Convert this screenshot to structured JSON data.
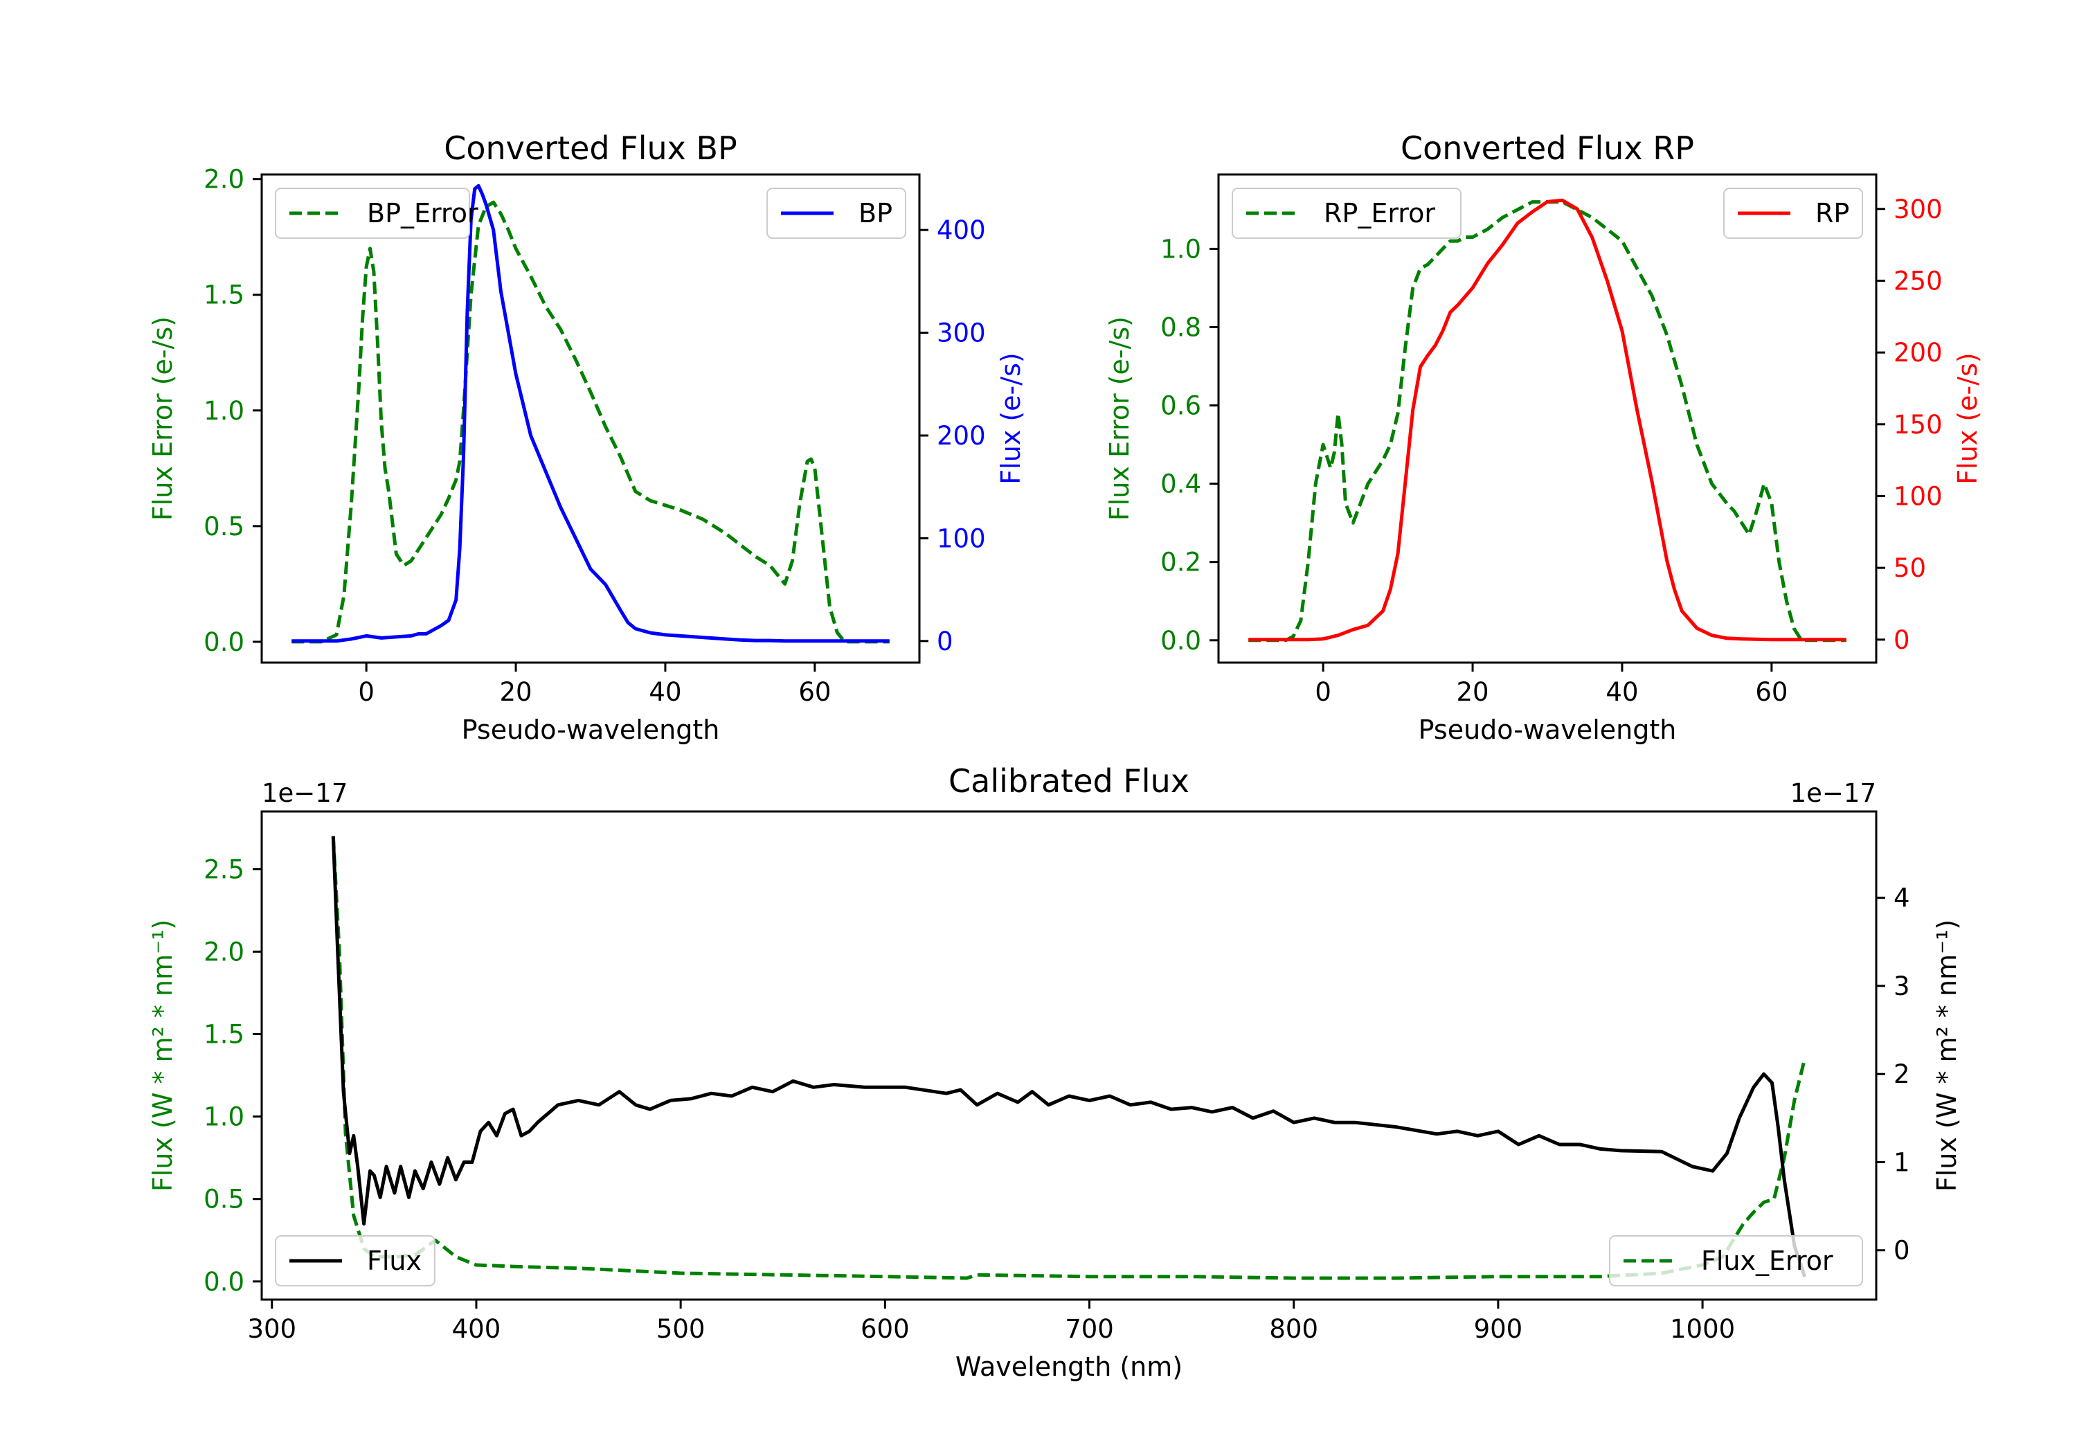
{
  "figure": {
    "background": "#ffffff"
  },
  "chart_data": [
    {
      "id": "bp",
      "type": "line",
      "title": "Converted Flux BP",
      "xlabel": "Pseudo-wavelength",
      "xlim": [
        -14,
        74
      ],
      "xticks": [
        0,
        20,
        40,
        60
      ],
      "ylabel_left": "Flux Error (e-/s)",
      "ylabel_right": "Flux (e-/s)",
      "ylim_left": [
        -0.09,
        2.02
      ],
      "ylim_right": [
        -21,
        454
      ],
      "yticks_left": [
        0.0,
        0.5,
        1.0,
        1.5,
        2.0
      ],
      "yticks_right": [
        0,
        100,
        200,
        300,
        400
      ],
      "left_axis_color": "#008000",
      "right_axis_color": "#0000ff",
      "legend_left": {
        "position": "upper left",
        "entries": [
          "BP_Error"
        ]
      },
      "legend_right": {
        "position": "upper right",
        "entries": [
          "BP"
        ]
      },
      "series": [
        {
          "name": "BP_Error",
          "axis": "left",
          "color": "#008000",
          "dash": "dashed",
          "x": [
            -10,
            -6,
            -4,
            -3,
            -2,
            -1,
            -0.5,
            0,
            0.5,
            1,
            1.5,
            2,
            2.5,
            3,
            4,
            5,
            6,
            7,
            8,
            9,
            10,
            11,
            12,
            12.5,
            13,
            14,
            15,
            16,
            17,
            18,
            19,
            20,
            22,
            24,
            26,
            28,
            30,
            32,
            34,
            36,
            38,
            40,
            42,
            45,
            48,
            50,
            52,
            54,
            55,
            56,
            57,
            58,
            59,
            59.5,
            60,
            61,
            62,
            63,
            64,
            65,
            70
          ],
          "values": [
            0,
            0,
            0.03,
            0.2,
            0.6,
            1.1,
            1.4,
            1.62,
            1.7,
            1.6,
            1.3,
            0.95,
            0.75,
            0.65,
            0.38,
            0.33,
            0.35,
            0.4,
            0.45,
            0.5,
            0.55,
            0.62,
            0.7,
            0.78,
            1.0,
            1.5,
            1.8,
            1.88,
            1.9,
            1.85,
            1.78,
            1.7,
            1.58,
            1.45,
            1.35,
            1.22,
            1.08,
            0.93,
            0.8,
            0.65,
            0.61,
            0.59,
            0.57,
            0.53,
            0.47,
            0.42,
            0.37,
            0.33,
            0.29,
            0.25,
            0.35,
            0.6,
            0.78,
            0.79,
            0.75,
            0.45,
            0.15,
            0.04,
            0.0,
            0,
            0
          ]
        },
        {
          "name": "BP",
          "axis": "right",
          "color": "#0000ff",
          "dash": "solid",
          "x": [
            -10,
            -4,
            -2,
            0,
            2,
            4,
            6,
            7,
            8,
            10,
            11,
            12,
            12.5,
            13,
            13.5,
            14,
            14.5,
            15,
            15.5,
            16,
            17,
            18,
            19,
            20,
            22,
            24,
            26,
            28,
            30,
            32,
            34,
            35,
            36,
            38,
            40,
            42,
            44,
            46,
            48,
            50,
            52,
            54,
            56,
            60,
            70
          ],
          "values": [
            0,
            0,
            2,
            5,
            3,
            4,
            5,
            7,
            7,
            15,
            20,
            40,
            90,
            180,
            320,
            410,
            440,
            443,
            435,
            425,
            400,
            340,
            300,
            260,
            200,
            165,
            130,
            100,
            70,
            55,
            30,
            18,
            12,
            8,
            6,
            5,
            4,
            3,
            2,
            1,
            0.5,
            0.5,
            0,
            0,
            0
          ]
        }
      ]
    },
    {
      "id": "rp",
      "type": "line",
      "title": "Converted Flux RP",
      "xlabel": "Pseudo-wavelength",
      "xlim": [
        -14,
        74
      ],
      "xticks": [
        0,
        20,
        40,
        60
      ],
      "ylabel_left": "Flux Error (e-/s)",
      "ylabel_right": "Flux (e-/s)",
      "ylim_left": [
        -0.057,
        1.19
      ],
      "ylim_right": [
        -16,
        324
      ],
      "yticks_left": [
        0.0,
        0.2,
        0.4,
        0.6,
        0.8,
        1.0
      ],
      "yticks_right": [
        0,
        50,
        100,
        150,
        200,
        250,
        300
      ],
      "left_axis_color": "#008000",
      "right_axis_color": "#ff0000",
      "legend_left": {
        "position": "upper left",
        "entries": [
          "RP_Error"
        ]
      },
      "legend_right": {
        "position": "upper right",
        "entries": [
          "RP"
        ]
      },
      "series": [
        {
          "name": "RP_Error",
          "axis": "left",
          "color": "#008000",
          "dash": "dashed",
          "x": [
            -10,
            -5,
            -4,
            -3,
            -2,
            -1,
            0,
            1,
            1.5,
            2,
            2.5,
            3,
            4,
            5,
            6,
            7,
            8,
            9,
            10,
            11,
            12,
            13,
            14,
            15,
            16,
            17,
            18,
            19,
            20,
            22,
            24,
            26,
            28,
            30,
            32,
            34,
            36,
            38,
            40,
            42,
            44,
            46,
            48,
            50,
            52,
            54,
            55,
            56,
            57,
            58,
            59,
            60,
            61,
            62,
            63,
            64,
            65,
            70
          ],
          "values": [
            0,
            0,
            0.01,
            0.05,
            0.2,
            0.4,
            0.5,
            0.44,
            0.48,
            0.58,
            0.5,
            0.35,
            0.3,
            0.35,
            0.4,
            0.43,
            0.46,
            0.5,
            0.58,
            0.75,
            0.9,
            0.95,
            0.96,
            0.98,
            1.0,
            1.02,
            1.02,
            1.03,
            1.03,
            1.05,
            1.08,
            1.1,
            1.12,
            1.12,
            1.12,
            1.1,
            1.08,
            1.05,
            1.02,
            0.95,
            0.88,
            0.78,
            0.65,
            0.5,
            0.4,
            0.35,
            0.33,
            0.3,
            0.27,
            0.33,
            0.4,
            0.35,
            0.2,
            0.1,
            0.03,
            0.0,
            0,
            0
          ]
        },
        {
          "name": "RP",
          "axis": "right",
          "color": "#ff0000",
          "dash": "solid",
          "x": [
            -10,
            -2,
            0,
            2,
            4,
            6,
            8,
            9,
            10,
            11,
            12,
            13,
            14,
            15,
            16,
            17,
            18,
            20,
            22,
            24,
            26,
            28,
            30,
            32,
            34,
            36,
            38,
            40,
            42,
            44,
            46,
            47,
            48,
            50,
            52,
            54,
            56,
            60,
            70
          ],
          "values": [
            0,
            0,
            0.5,
            3,
            7,
            10,
            20,
            35,
            60,
            110,
            160,
            190,
            198,
            205,
            215,
            228,
            233,
            245,
            262,
            275,
            290,
            298,
            305,
            306,
            300,
            280,
            250,
            215,
            160,
            110,
            55,
            35,
            20,
            8,
            3,
            1,
            0.5,
            0,
            0
          ]
        }
      ]
    },
    {
      "id": "calibrated",
      "type": "line",
      "title": "Calibrated Flux",
      "xlabel": "Wavelength (nm)",
      "xlim": [
        295,
        1085
      ],
      "xticks": [
        300,
        400,
        500,
        600,
        700,
        800,
        900,
        1000
      ],
      "ylabel_left": "Flux (W * m² * nm⁻¹)",
      "ylabel_right": "Flux (W * m² * nm⁻¹)",
      "offset_left": "1e−17",
      "offset_right": "1e−17",
      "ylim_left": [
        -0.11,
        2.85
      ],
      "ylim_right": [
        -0.56,
        4.98
      ],
      "yticks_left": [
        0.0,
        0.5,
        1.0,
        1.5,
        2.0,
        2.5
      ],
      "yticks_right": [
        0,
        1,
        2,
        3,
        4
      ],
      "left_axis_color": "#008000",
      "right_axis_color": "#000000",
      "legend_left": {
        "position": "lower left",
        "entries": [
          "Flux"
        ]
      },
      "legend_right": {
        "position": "lower right",
        "entries": [
          "Flux_Error"
        ]
      },
      "series": [
        {
          "name": "Flux",
          "axis": "right",
          "color": "#000000",
          "dash": "solid",
          "x": [
            330,
            332,
            335,
            338,
            340,
            342,
            345,
            348,
            350,
            353,
            356,
            360,
            363,
            367,
            370,
            374,
            378,
            382,
            386,
            390,
            394,
            398,
            402,
            406,
            410,
            414,
            418,
            422,
            426,
            430,
            440,
            450,
            460,
            470,
            478,
            485,
            495,
            505,
            515,
            525,
            535,
            545,
            555,
            565,
            575,
            590,
            610,
            630,
            637,
            645,
            655,
            665,
            672,
            680,
            690,
            700,
            710,
            720,
            730,
            740,
            750,
            760,
            770,
            780,
            790,
            800,
            810,
            820,
            830,
            850,
            870,
            880,
            890,
            900,
            910,
            920,
            930,
            940,
            950,
            960,
            980,
            995,
            1005,
            1012,
            1018,
            1025,
            1030,
            1034,
            1037,
            1040,
            1045,
            1050
          ],
          "values": [
            4.7,
            3.5,
            1.8,
            1.1,
            1.3,
            0.95,
            0.3,
            0.9,
            0.85,
            0.6,
            0.95,
            0.65,
            0.95,
            0.6,
            0.9,
            0.7,
            1.0,
            0.75,
            1.05,
            0.8,
            1.0,
            1.0,
            1.35,
            1.45,
            1.3,
            1.55,
            1.6,
            1.3,
            1.35,
            1.45,
            1.65,
            1.7,
            1.65,
            1.8,
            1.65,
            1.6,
            1.7,
            1.72,
            1.78,
            1.75,
            1.85,
            1.8,
            1.92,
            1.85,
            1.88,
            1.85,
            1.85,
            1.78,
            1.82,
            1.65,
            1.78,
            1.68,
            1.8,
            1.65,
            1.75,
            1.7,
            1.75,
            1.65,
            1.68,
            1.6,
            1.62,
            1.57,
            1.62,
            1.5,
            1.58,
            1.45,
            1.5,
            1.45,
            1.45,
            1.4,
            1.32,
            1.35,
            1.3,
            1.35,
            1.2,
            1.3,
            1.2,
            1.2,
            1.15,
            1.13,
            1.12,
            0.95,
            0.9,
            1.1,
            1.5,
            1.85,
            2.0,
            1.9,
            1.4,
            0.8,
            0.05,
            -0.3
          ]
        },
        {
          "name": "Flux_Error",
          "axis": "left",
          "color": "#008000",
          "dash": "dashed",
          "x": [
            330,
            333,
            336,
            340,
            345,
            350,
            360,
            370,
            380,
            385,
            390,
            400,
            420,
            450,
            500,
            550,
            600,
            640,
            645,
            700,
            750,
            800,
            850,
            900,
            950,
            980,
            1000,
            1010,
            1015,
            1020,
            1025,
            1030,
            1035,
            1040,
            1045,
            1050
          ],
          "values": [
            2.7,
            2.0,
            0.9,
            0.4,
            0.2,
            0.15,
            0.15,
            0.16,
            0.25,
            0.2,
            0.15,
            0.1,
            0.09,
            0.08,
            0.05,
            0.04,
            0.03,
            0.02,
            0.04,
            0.03,
            0.03,
            0.02,
            0.02,
            0.03,
            0.03,
            0.05,
            0.1,
            0.15,
            0.25,
            0.35,
            0.42,
            0.48,
            0.5,
            0.75,
            1.1,
            1.35
          ]
        }
      ]
    }
  ]
}
